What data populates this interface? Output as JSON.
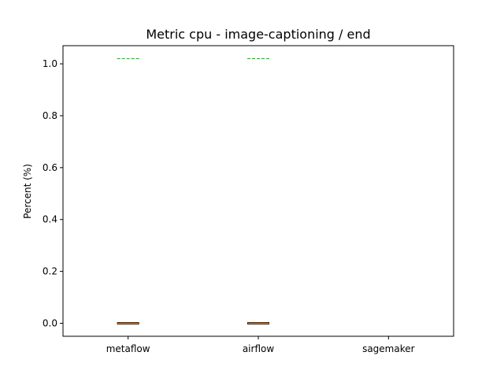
{
  "chart_data": {
    "type": "box",
    "title": "Metric cpu - image-captioning / end",
    "xlabel": "",
    "ylabel": "Percent (%)",
    "ylim": [
      -0.05,
      1.07
    ],
    "yticks": [
      "0.0",
      "0.2",
      "0.4",
      "0.6",
      "0.8",
      "1.0"
    ],
    "grid": false,
    "categories": [
      "metaflow",
      "airflow",
      "sagemaker"
    ],
    "boxes": [
      {
        "category": "metaflow",
        "q1": 0.0,
        "median": 0.0,
        "q3": 0.0,
        "whisker_low": 0.0,
        "whisker_high": 0.0,
        "mean": 1.02
      },
      {
        "category": "airflow",
        "q1": 0.0,
        "median": 0.0,
        "q3": 0.0,
        "whisker_low": 0.0,
        "whisker_high": 0.0,
        "mean": 1.02
      },
      {
        "category": "sagemaker"
      }
    ],
    "colors": {
      "median": "#ff7f0e",
      "mean": "#2ca02c",
      "box": "#000000"
    }
  }
}
